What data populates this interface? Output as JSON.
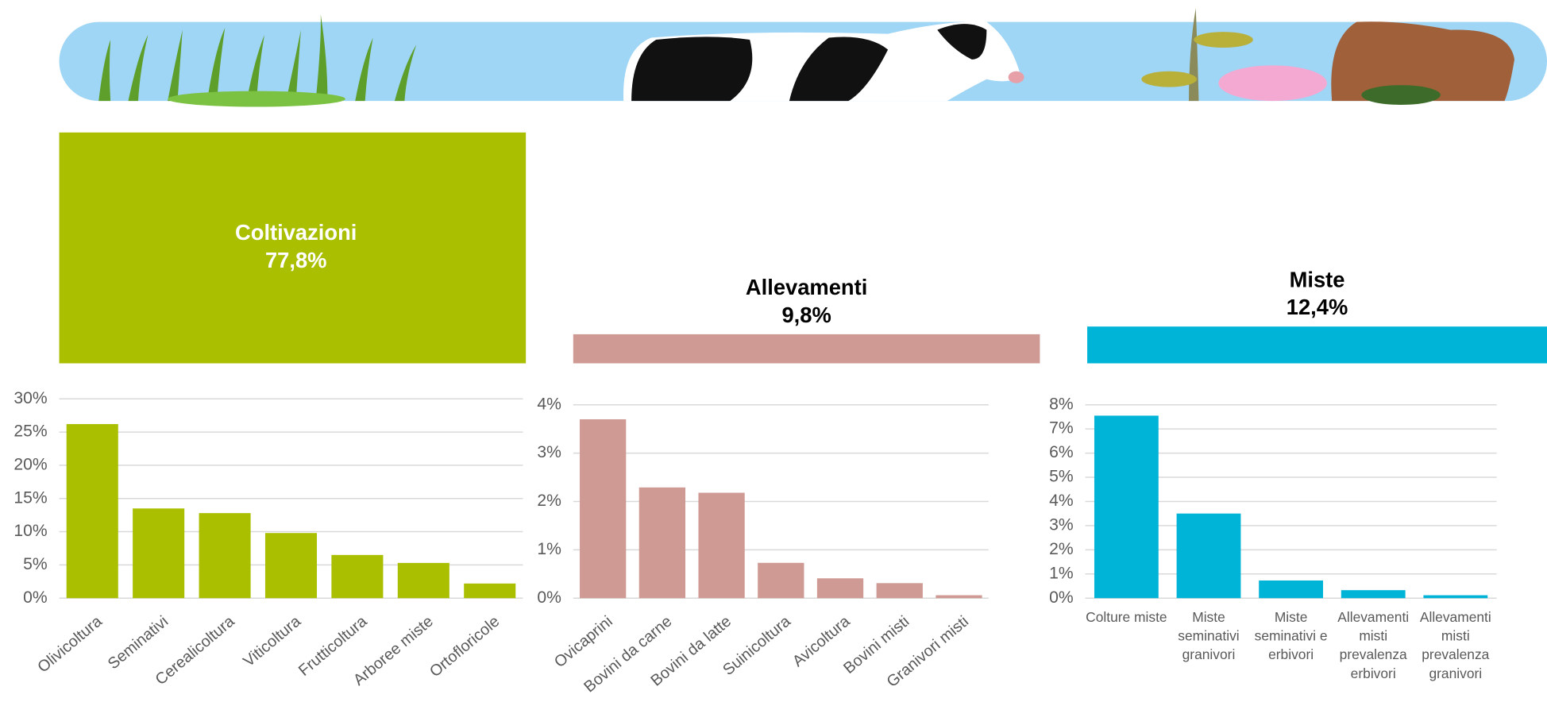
{
  "chart_data": [
    {
      "type": "bar",
      "categories": [
        "Coltivazioni",
        "Allevamenti",
        "Miste"
      ],
      "values": [
        77.8,
        9.8,
        12.4
      ],
      "value_labels": [
        "77,8%",
        "9,8%",
        "12,4%"
      ],
      "colors": [
        "#a9bf00",
        "#d09a94",
        "#00b4d8"
      ]
    },
    {
      "type": "bar",
      "categories": [
        "Olivicoltura",
        "Seminativi",
        "Cerealicoltura",
        "Viticoltura",
        "Frutticoltura",
        "Arboree miste",
        "Ortofloricole"
      ],
      "values": [
        26.2,
        13.5,
        12.8,
        9.8,
        6.5,
        5.3,
        2.2
      ],
      "color": "#a9bf00",
      "ylim": [
        0,
        30
      ],
      "yticks": [
        {
          "value": 0,
          "label": "0%"
        },
        {
          "value": 5,
          "label": "5%"
        },
        {
          "value": 10,
          "label": "10%"
        },
        {
          "value": 15,
          "label": "15%"
        },
        {
          "value": 20,
          "label": "20%"
        },
        {
          "value": 25,
          "label": "25%"
        },
        {
          "value": 30,
          "label": "30%"
        }
      ],
      "grid": true
    },
    {
      "type": "bar",
      "categories": [
        "Ovicaprini",
        "Bovini da carne",
        "Bovini da latte",
        "Suinicoltura",
        "Avicoltura",
        "Bovini misti",
        "Granivori misti"
      ],
      "values": [
        3.7,
        2.29,
        2.18,
        0.73,
        0.41,
        0.31,
        0.06
      ],
      "color": "#d09a94",
      "ylim": [
        0,
        4
      ],
      "yticks": [
        {
          "value": 0,
          "label": "0%"
        },
        {
          "value": 1,
          "label": "1%"
        },
        {
          "value": 2,
          "label": "2%"
        },
        {
          "value": 3,
          "label": "3%"
        },
        {
          "value": 4,
          "label": "4%"
        }
      ],
      "grid": true
    },
    {
      "type": "bar",
      "categories": [
        "Colture miste",
        "Miste seminativi granivori",
        "Miste seminativi e erbivori",
        "Allevamenti misti prevalenza erbivori",
        "Allevamenti misti prevalenza granivori"
      ],
      "values": [
        7.55,
        3.5,
        0.73,
        0.33,
        0.12
      ],
      "color": "#00b4d8",
      "ylim": [
        0,
        8
      ],
      "yticks": [
        {
          "value": 0,
          "label": "0%"
        },
        {
          "value": 1,
          "label": "1%"
        },
        {
          "value": 2,
          "label": "2%"
        },
        {
          "value": 3,
          "label": "3%"
        },
        {
          "value": 4,
          "label": "4%"
        },
        {
          "value": 5,
          "label": "5%"
        },
        {
          "value": 6,
          "label": "6%"
        },
        {
          "value": 7,
          "label": "7%"
        },
        {
          "value": 8,
          "label": "8%"
        }
      ],
      "grid": true
    }
  ]
}
